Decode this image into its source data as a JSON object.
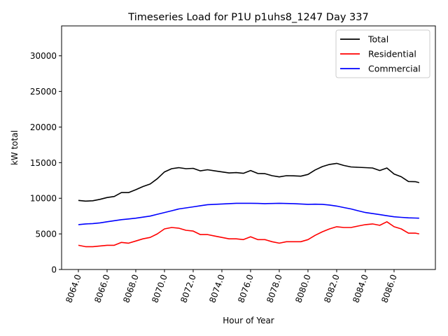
{
  "chart_data": {
    "type": "line",
    "title": "Timeseries Load for P1U p1uhs8_1247  Day 337",
    "xlabel": "Hour of Year",
    "ylabel": "kW total",
    "xlim": [
      8062.83,
      8088.88
    ],
    "ylim": [
      0,
      34200
    ],
    "xticks": [
      8064,
      8066,
      8068,
      8070,
      8072,
      8074,
      8076,
      8078,
      8080,
      8082,
      8084,
      8086
    ],
    "xtick_labels": [
      "8064.0",
      "8066.0",
      "8068.0",
      "8070.0",
      "8072.0",
      "8074.0",
      "8076.0",
      "8078.0",
      "8080.0",
      "8082.0",
      "8084.0",
      "8086.0"
    ],
    "yticks": [
      0,
      5000,
      10000,
      15000,
      20000,
      25000,
      30000
    ],
    "ytick_labels": [
      "0",
      "5000",
      "10000",
      "15000",
      "20000",
      "25000",
      "30000"
    ],
    "grid": false,
    "legend_position": "top-right",
    "x": [
      8064,
      8064.5,
      8065,
      8065.5,
      8066,
      8066.5,
      8067,
      8067.5,
      8068,
      8068.5,
      8069,
      8069.5,
      8070,
      8070.5,
      8071,
      8071.5,
      8072,
      8072.5,
      8073,
      8073.5,
      8074,
      8074.5,
      8075,
      8075.5,
      8076,
      8076.5,
      8077,
      8077.5,
      8078,
      8078.5,
      8079,
      8079.5,
      8080,
      8080.5,
      8081,
      8081.5,
      8082,
      8082.5,
      8083,
      8083.5,
      8084,
      8084.5,
      8085,
      8085.5,
      8086,
      8086.5,
      8087,
      8087.5,
      8087.75
    ],
    "series": [
      {
        "name": "Total",
        "color": "#000000",
        "values": [
          9700,
          9600,
          9650,
          9850,
          10100,
          10250,
          10800,
          10800,
          11200,
          11650,
          12000,
          12750,
          13700,
          14150,
          14300,
          14150,
          14200,
          13850,
          14000,
          13850,
          13700,
          13550,
          13600,
          13500,
          13900,
          13480,
          13450,
          13170,
          13000,
          13170,
          13150,
          13100,
          13350,
          13970,
          14450,
          14750,
          14900,
          14600,
          14400,
          14350,
          14300,
          14250,
          13900,
          14250,
          13400,
          13020,
          12350,
          12320,
          12200
        ]
      },
      {
        "name": "Residential",
        "color": "#ff0000",
        "values": [
          3400,
          3200,
          3200,
          3300,
          3400,
          3400,
          3800,
          3700,
          4000,
          4300,
          4500,
          5000,
          5700,
          5900,
          5800,
          5500,
          5400,
          4900,
          4900,
          4700,
          4500,
          4300,
          4300,
          4200,
          4600,
          4200,
          4200,
          3900,
          3700,
          3900,
          3900,
          3900,
          4200,
          4800,
          5300,
          5700,
          6000,
          5900,
          5900,
          6100,
          6300,
          6400,
          6200,
          6700,
          6000,
          5700,
          5100,
          5100,
          5000
        ]
      },
      {
        "name": "Commercial",
        "color": "#0000ff",
        "values": [
          6300,
          6400,
          6450,
          6550,
          6700,
          6850,
          7000,
          7100,
          7200,
          7350,
          7500,
          7750,
          8000,
          8250,
          8500,
          8650,
          8800,
          8950,
          9100,
          9150,
          9200,
          9250,
          9300,
          9300,
          9300,
          9280,
          9250,
          9270,
          9300,
          9270,
          9250,
          9200,
          9150,
          9170,
          9150,
          9050,
          8900,
          8700,
          8500,
          8250,
          8000,
          7850,
          7700,
          7550,
          7400,
          7320,
          7250,
          7220,
          7200
        ]
      }
    ]
  }
}
